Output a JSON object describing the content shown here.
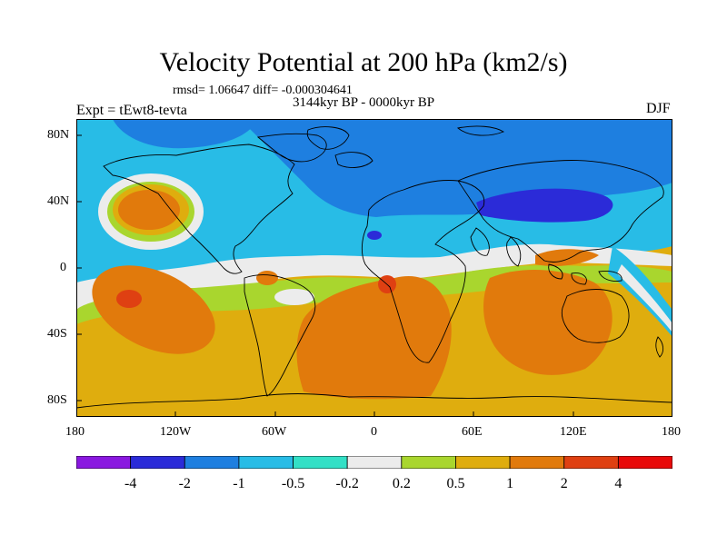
{
  "title": "Velocity Potential at 200 hPa (km2/s)",
  "stats": "rmsd= 1.06647 diff= -0.000304641",
  "period": "3144kyr BP - 0000kyr BP",
  "experiment": "Expt = tEwt8-tevta",
  "season": "DJF",
  "lat_labels": [
    "80N",
    "40N",
    "0",
    "40S",
    "80S"
  ],
  "lon_labels": [
    "180",
    "120W",
    "60W",
    "0",
    "60E",
    "120E",
    "180"
  ],
  "colorbar": {
    "labels": [
      "-4",
      "-2",
      "-1",
      "-0.5",
      "-0.2",
      "0.2",
      "0.5",
      "1",
      "2",
      "4"
    ],
    "colors": [
      "#8a18e0",
      "#2b2bd8",
      "#1e7fe0",
      "#28bce6",
      "#33e0c6",
      "#ececec",
      "#a9d62e",
      "#dfad0e",
      "#e17a0c",
      "#df4012",
      "#e80a0a"
    ]
  },
  "palette": {
    "ocean_base": "#1e7fe0",
    "land_lines": "#000000"
  }
}
